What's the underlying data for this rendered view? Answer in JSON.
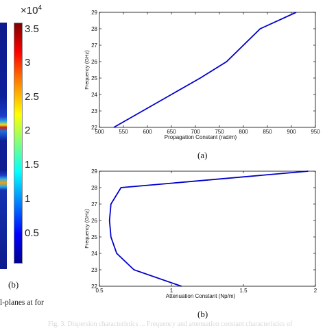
{
  "left_panel": {
    "exponent_prefix": "×10",
    "exponent_power": "4",
    "colorbar_ticks": [
      "3.5",
      "3",
      "2.5",
      "2",
      "1.5",
      "1",
      "0.5"
    ],
    "caption": "(b)",
    "footnote": "l-planes at for"
  },
  "captions": {
    "a": "(a)",
    "b": "(b)"
  },
  "bottom_text": "Fig. 3.   Dispersion characteristics ... Frequency and attenuation constant characteristics of",
  "chart_data": [
    {
      "type": "line",
      "title": "",
      "xlabel": "Propagation Constant (rad/m)",
      "ylabel": "Frequency (GHz)",
      "xlim": [
        500,
        950
      ],
      "ylim": [
        22,
        29
      ],
      "xticks": [
        "500",
        "550",
        "600",
        "650",
        "700",
        "750",
        "800",
        "850",
        "900",
        "950"
      ],
      "yticks": [
        "22",
        "23",
        "24",
        "25",
        "26",
        "27",
        "28",
        "29"
      ],
      "grid": false,
      "color": "#0000cc",
      "series": [
        {
          "x": [
            530,
            590,
            650,
            710,
            765,
            835,
            910
          ],
          "y": [
            22,
            23,
            24,
            25,
            26,
            28,
            29
          ]
        }
      ]
    },
    {
      "type": "line",
      "title": "",
      "xlabel": "Attenuation Constant (Np/m)",
      "ylabel": "Frequency (GHz)",
      "xlim": [
        0.5,
        2
      ],
      "ylim": [
        22,
        29
      ],
      "xticks": [
        "0.5",
        "1",
        "1.5",
        "2"
      ],
      "yticks": [
        "22",
        "23",
        "24",
        "25",
        "26",
        "27",
        "28",
        "29"
      ],
      "grid": false,
      "color": "#0000cc",
      "series": [
        {
          "x": [
            1.07,
            0.74,
            0.62,
            0.58,
            0.57,
            0.58,
            0.65,
            1.95
          ],
          "y": [
            22,
            23,
            24,
            25,
            26,
            27,
            28,
            29
          ]
        }
      ]
    }
  ]
}
